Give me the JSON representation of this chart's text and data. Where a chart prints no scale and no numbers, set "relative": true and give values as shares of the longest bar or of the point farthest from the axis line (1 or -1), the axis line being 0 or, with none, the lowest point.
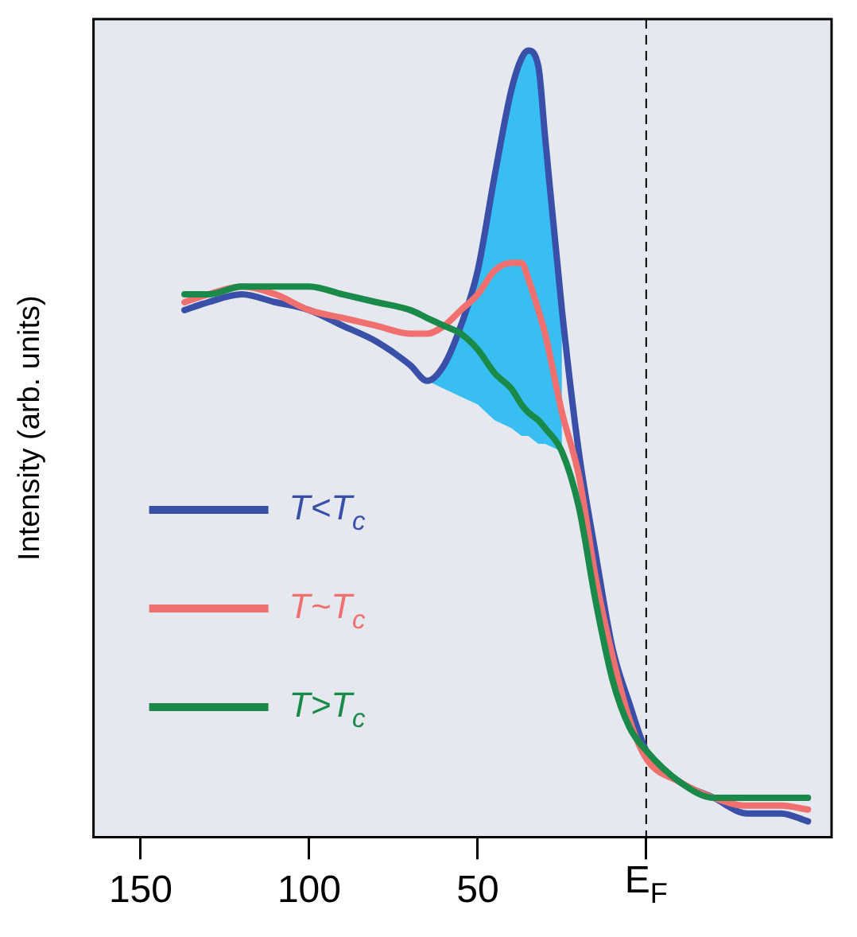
{
  "chart_data": {
    "type": "line",
    "ylabel": "Intensity (arb. units)",
    "relative": true,
    "x": [
      137,
      130,
      120,
      110,
      100,
      90,
      80,
      70,
      65,
      60,
      55,
      50,
      45,
      40,
      37,
      35,
      32,
      30,
      25,
      20,
      15,
      10,
      5,
      0,
      -10,
      -20,
      -30,
      -40,
      -48
    ],
    "xlim": [
      164,
      -55
    ],
    "xticks": [
      150,
      100,
      50,
      {
        "value": 0,
        "label": "E$_{F}$"
      }
    ],
    "series": [
      {
        "name": "T<T$_{c}$",
        "color": "#3a4fa8",
        "values": [
          0.67,
          0.68,
          0.69,
          0.68,
          0.67,
          0.65,
          0.63,
          0.6,
          0.58,
          0.6,
          0.65,
          0.72,
          0.84,
          0.95,
          0.99,
          1,
          0.98,
          0.89,
          0.67,
          0.49,
          0.36,
          0.24,
          0.17,
          0.11,
          0.07,
          0.05,
          0.03,
          0.03,
          0.02
        ],
        "lower": [
          null,
          null,
          null,
          null,
          null,
          null,
          null,
          null,
          0.58,
          0.57,
          0.56,
          0.55,
          0.53,
          0.52,
          0.51,
          0.51,
          0.5,
          0.5,
          0.49,
          null,
          null,
          null,
          null,
          null,
          null,
          null,
          null,
          null,
          null
        ],
        "upper": [
          null,
          null,
          null,
          null,
          null,
          null,
          null,
          null,
          0.58,
          0.6,
          0.65,
          0.72,
          0.84,
          0.95,
          0.99,
          1,
          0.98,
          0.89,
          0.67,
          null,
          null,
          null,
          null,
          null,
          null,
          null,
          null,
          null,
          null
        ]
      },
      {
        "name": "T~T$_{c}$",
        "color": "#f07070",
        "values": [
          0.68,
          0.69,
          0.7,
          0.69,
          0.67,
          0.66,
          0.65,
          0.64,
          0.64,
          0.65,
          0.67,
          0.69,
          0.72,
          0.73,
          0.73,
          0.71,
          0.67,
          0.64,
          0.54,
          0.46,
          0.33,
          0.23,
          0.15,
          0.1,
          0.07,
          0.05,
          0.04,
          0.04,
          0.035
        ]
      },
      {
        "name": "T>T$_{c}$",
        "color": "#1a8a4a",
        "values": [
          0.69,
          0.69,
          0.7,
          0.7,
          0.7,
          0.69,
          0.68,
          0.67,
          0.66,
          0.65,
          0.64,
          0.62,
          0.59,
          0.57,
          0.55,
          0.54,
          0.53,
          0.52,
          0.49,
          0.42,
          0.3,
          0.2,
          0.14,
          0.11,
          0.07,
          0.05,
          0.05,
          0.05,
          0.05
        ]
      }
    ],
    "ref_lines": [
      {
        "axis": "x",
        "value": 0,
        "color": "#000000",
        "line_style": "dashed"
      }
    ],
    "legend": "bottom left",
    "line_style": "solid",
    "marker": "none"
  }
}
